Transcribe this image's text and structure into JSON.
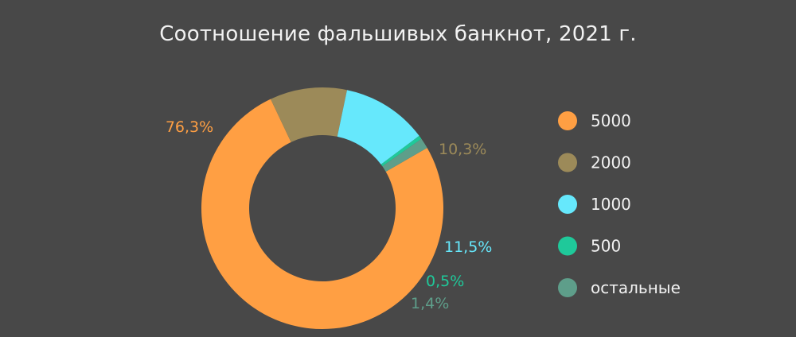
{
  "chart_data": {
    "type": "pie",
    "title": "Соотношение фальшивых банкнот, 2021 г.",
    "slices": [
      {
        "name": "5000",
        "value": 76.3,
        "label": "76,3%",
        "color": "#FF9F43"
      },
      {
        "name": "2000",
        "value": 10.3,
        "label": "10,3%",
        "color": "#9C8A59"
      },
      {
        "name": "1000",
        "value": 11.5,
        "label": "11,5%",
        "color": "#66E8FC"
      },
      {
        "name": "500",
        "value": 0.5,
        "label": "0,5%",
        "color": "#1FC99A"
      },
      {
        "name": "остальные",
        "value": 1.4,
        "label": "1,4%",
        "color": "#5E9E8A"
      }
    ],
    "donut": true,
    "legend_position": "right"
  },
  "colors": {
    "background": "#484848",
    "title": "#f2f2f2"
  }
}
